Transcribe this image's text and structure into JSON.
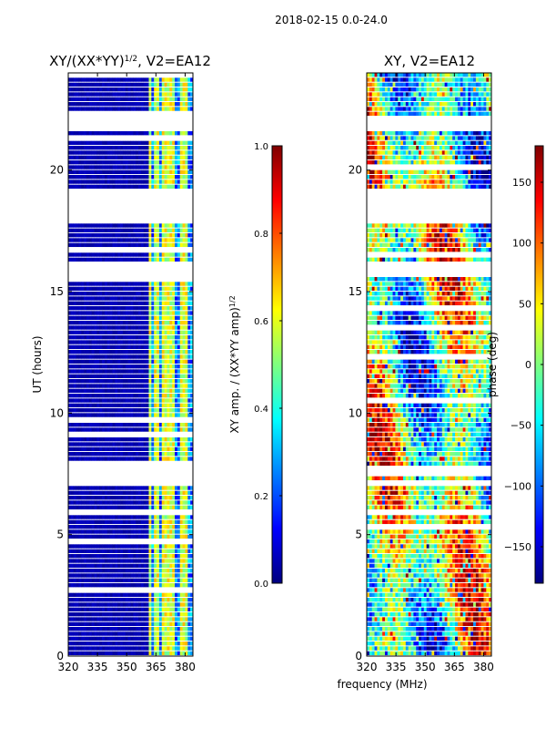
{
  "figure": {
    "suptitle": "2018-02-15 0.0-24.0",
    "xlabel": "frequency (MHz)"
  },
  "colors": {
    "jet": [
      "#00007f",
      "#0000ff",
      "#007fff",
      "#00ffff",
      "#7fff7f",
      "#ffff00",
      "#ff7f00",
      "#ff0000",
      "#7f0000"
    ],
    "axis": "#000000",
    "background": "#ffffff"
  },
  "chart_data": [
    {
      "type": "heatmap",
      "title_main": "XY/(XX*YY)",
      "title_sup": "1/2",
      "title_tail": ", V2=EA12",
      "xlabel": "",
      "ylabel": "UT (hours)",
      "xlim": [
        320,
        384
      ],
      "ylim": [
        0,
        24
      ],
      "xticks": [
        320,
        335,
        350,
        365,
        380
      ],
      "yticks": [
        0,
        5,
        10,
        15,
        20
      ],
      "colorbar": {
        "label_main": "XY amp. / (XX*YY amp)",
        "label_sup": "1/2",
        "range": [
          0.0,
          1.0
        ],
        "ticks": [
          0.0,
          0.2,
          0.4,
          0.6,
          0.8,
          1.0
        ],
        "tick_labels": [
          "0.0",
          "0.2",
          "0.4",
          "0.6",
          "0.8",
          "1.0"
        ]
      },
      "active_channel_mhz": [
        [
          361,
          384
        ]
      ],
      "bright_channel_mhz": [
        362,
        365,
        366,
        369,
        372,
        374,
        378,
        380
      ],
      "gap_hours": [
        [
          21.6,
          22.2
        ],
        [
          17.9,
          19.1
        ],
        [
          15.7,
          16.1
        ],
        [
          7.5,
          7.8
        ],
        [
          5.8,
          6.1
        ]
      ],
      "typical_value": 0.05,
      "active_value_range": [
        0.25,
        0.7
      ]
    },
    {
      "type": "heatmap",
      "title": "XY, V2=EA12",
      "xlabel": "",
      "ylabel": "",
      "xlim": [
        320,
        384
      ],
      "ylim": [
        0,
        24
      ],
      "xticks": [
        320,
        335,
        350,
        365,
        380
      ],
      "yticks": [
        0,
        5,
        10,
        15,
        20
      ],
      "colorbar": {
        "label": "phase (deg)",
        "range": [
          -180,
          180
        ],
        "ticks": [
          -150,
          -100,
          -50,
          0,
          50,
          100,
          150
        ],
        "tick_labels": [
          "−150",
          "−100",
          "−50",
          "0",
          "50",
          "100",
          "150"
        ]
      },
      "gap_hours": [
        [
          21.6,
          22.2
        ],
        [
          17.9,
          19.1
        ],
        [
          15.7,
          16.1
        ],
        [
          7.5,
          7.8
        ],
        [
          5.8,
          6.1
        ]
      ],
      "value_range_deg": [
        -180,
        180
      ]
    }
  ]
}
